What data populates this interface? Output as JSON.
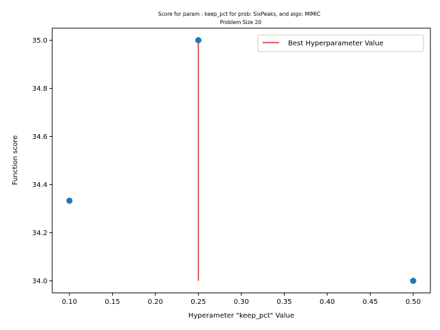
{
  "chart_data": {
    "type": "scatter",
    "title": "Score for param : keep_pct for prob: SixPeaks, and algo: MIMIC",
    "subtitle": "Problem Size 20",
    "xlabel": "Hyperameter \"keep_pct\" Value",
    "ylabel": "Function score",
    "xlim": [
      0.08,
      0.52
    ],
    "ylim": [
      33.95,
      35.05
    ],
    "x_ticks": [
      0.1,
      0.15,
      0.2,
      0.25,
      0.3,
      0.35,
      0.4,
      0.45,
      0.5
    ],
    "x_tick_labels": [
      "0.10",
      "0.15",
      "0.20",
      "0.25",
      "0.30",
      "0.35",
      "0.40",
      "0.45",
      "0.50"
    ],
    "y_ticks": [
      34.0,
      34.2,
      34.4,
      34.6,
      34.8,
      35.0
    ],
    "y_tick_labels": [
      "34.0",
      "34.2",
      "34.4",
      "34.6",
      "34.8",
      "35.0"
    ],
    "series": [
      {
        "x": [
          0.1,
          0.25,
          0.5
        ],
        "y": [
          34.333,
          35.0,
          34.0
        ],
        "color": "#1f77b4"
      }
    ],
    "best_line": {
      "name": "Best Hyperparameter Value",
      "x": 0.25,
      "y_range": [
        34.0,
        35.0
      ],
      "color": "#d62728"
    },
    "grid": false,
    "legend_position": "top-right"
  }
}
